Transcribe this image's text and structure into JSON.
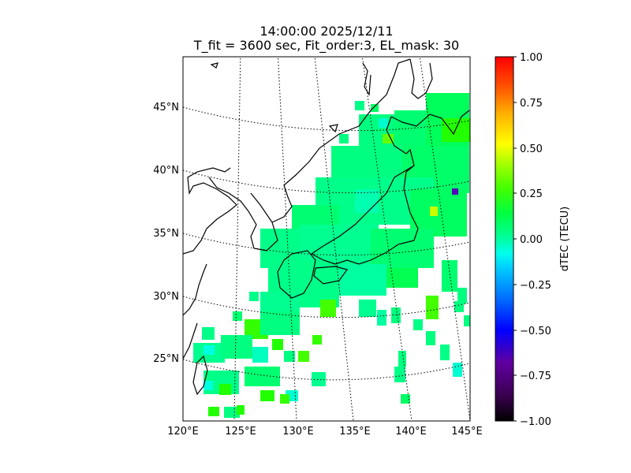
{
  "title": "14:00:00 2025/12/11",
  "subtitle": "T_fit = 3600 sec, Fit_order:3, EL_mask: 30",
  "colors": {
    "background": "#ffffff",
    "land_outline": "#000000",
    "graticule": "#000000",
    "dominant_value_color": "#00ff7f"
  },
  "chart_data": {
    "type": "heatmap",
    "map_region": "Japan and surrounding seas",
    "lon_range": [
      120,
      145
    ],
    "lat_range": [
      20,
      49
    ],
    "xticklabels": [
      "120°E",
      "125°E",
      "130°E",
      "135°E",
      "140°E",
      "145°E"
    ],
    "yticklabels": [
      "45°N",
      "40°N",
      "35°N",
      "30°N",
      "25°N"
    ],
    "colorbar": {
      "label": "dTEC (TECU)",
      "range": [
        -1.0,
        1.0
      ],
      "ticks": [
        "1.00",
        "0.75",
        "0.50",
        "0.25",
        "0.00",
        "−0.25",
        "−0.50",
        "−0.75",
        "−1.00"
      ],
      "colormap": "nipy_spectral-like"
    },
    "data_summary": "Most cells near 0.00 TECU (green/spring-green); scattered values ~0.1–0.3 (green), few ~-0.2 (cyan), one cell ~-0.7 near 144°E 38°N, one ~0.4 near 142°E 36°N"
  }
}
